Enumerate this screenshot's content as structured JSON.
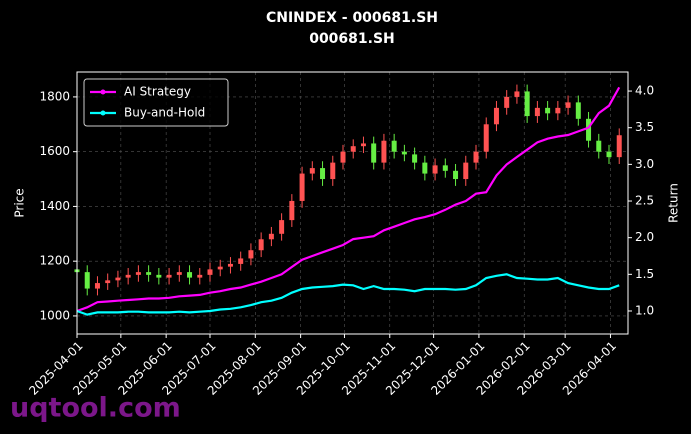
{
  "chart_data": {
    "type": "candlestick",
    "title": "CNINDEX - 000681.SH",
    "subtitle": "000681.SH",
    "y_label": "Price",
    "y2_label": "Return",
    "watermark": "uqtool.com",
    "x": [
      "2025-04-01",
      "2025-04-08",
      "2025-04-15",
      "2025-04-22",
      "2025-04-29",
      "2025-05-06",
      "2025-05-13",
      "2025-05-20",
      "2025-05-27",
      "2025-06-03",
      "2025-06-10",
      "2025-06-17",
      "2025-06-24",
      "2025-07-01",
      "2025-07-08",
      "2025-07-15",
      "2025-07-22",
      "2025-07-29",
      "2025-08-05",
      "2025-08-12",
      "2025-08-19",
      "2025-08-26",
      "2025-09-02",
      "2025-09-09",
      "2025-09-16",
      "2025-09-23",
      "2025-09-30",
      "2025-10-07",
      "2025-10-14",
      "2025-10-21",
      "2025-10-28",
      "2025-11-04",
      "2025-11-11",
      "2025-11-18",
      "2025-11-25",
      "2025-12-02",
      "2025-12-09",
      "2025-12-16",
      "2025-12-23",
      "2025-12-30",
      "2026-01-06",
      "2026-01-13",
      "2026-01-20",
      "2026-01-27",
      "2026-02-03",
      "2026-02-10",
      "2026-02-17",
      "2026-02-24",
      "2026-03-03",
      "2026-03-10",
      "2026-03-17",
      "2026-03-24",
      "2026-03-31",
      "2026-04-07"
    ],
    "candles": {
      "up_color": "#ff5252",
      "down_color": "#66ee44",
      "open": [
        1170,
        1160,
        1100,
        1120,
        1130,
        1140,
        1150,
        1160,
        1150,
        1140,
        1150,
        1160,
        1140,
        1150,
        1170,
        1180,
        1190,
        1210,
        1240,
        1280,
        1300,
        1350,
        1420,
        1520,
        1540,
        1500,
        1560,
        1600,
        1620,
        1630,
        1560,
        1640,
        1600,
        1590,
        1560,
        1520,
        1550,
        1530,
        1500,
        1560,
        1600,
        1700,
        1760,
        1800,
        1820,
        1730,
        1760,
        1740,
        1760,
        1780,
        1720,
        1640,
        1600,
        1580
      ],
      "high": [
        1195,
        1185,
        1145,
        1155,
        1165,
        1175,
        1185,
        1185,
        1175,
        1175,
        1185,
        1185,
        1175,
        1195,
        1205,
        1215,
        1235,
        1265,
        1305,
        1325,
        1375,
        1445,
        1545,
        1565,
        1565,
        1585,
        1625,
        1645,
        1655,
        1655,
        1665,
        1665,
        1625,
        1615,
        1585,
        1575,
        1575,
        1555,
        1585,
        1625,
        1725,
        1785,
        1825,
        1845,
        1845,
        1785,
        1785,
        1785,
        1805,
        1805,
        1745,
        1665,
        1625,
        1685
      ],
      "low": [
        1135,
        1075,
        1075,
        1095,
        1105,
        1115,
        1125,
        1125,
        1115,
        1115,
        1125,
        1115,
        1115,
        1125,
        1145,
        1155,
        1165,
        1185,
        1215,
        1255,
        1275,
        1325,
        1395,
        1495,
        1475,
        1475,
        1535,
        1575,
        1595,
        1535,
        1535,
        1575,
        1565,
        1535,
        1495,
        1495,
        1505,
        1475,
        1475,
        1535,
        1575,
        1675,
        1735,
        1775,
        1705,
        1705,
        1715,
        1715,
        1735,
        1695,
        1615,
        1575,
        1555,
        1555
      ],
      "close": [
        1160,
        1100,
        1120,
        1130,
        1140,
        1150,
        1160,
        1150,
        1140,
        1150,
        1160,
        1140,
        1150,
        1170,
        1180,
        1190,
        1210,
        1240,
        1280,
        1300,
        1350,
        1420,
        1520,
        1540,
        1500,
        1560,
        1600,
        1620,
        1630,
        1560,
        1640,
        1600,
        1590,
        1560,
        1520,
        1550,
        1530,
        1500,
        1560,
        1600,
        1700,
        1760,
        1800,
        1820,
        1730,
        1760,
        1740,
        1760,
        1780,
        1720,
        1640,
        1600,
        1580,
        1660
      ]
    },
    "series": [
      {
        "name": "AI Strategy",
        "color": "#ff00ff",
        "axis": "y2",
        "values": [
          1.0,
          1.05,
          1.12,
          1.13,
          1.14,
          1.15,
          1.16,
          1.17,
          1.17,
          1.18,
          1.2,
          1.21,
          1.22,
          1.25,
          1.27,
          1.3,
          1.32,
          1.36,
          1.4,
          1.45,
          1.5,
          1.6,
          1.7,
          1.75,
          1.8,
          1.85,
          1.9,
          1.98,
          2.0,
          2.02,
          2.1,
          2.15,
          2.2,
          2.25,
          2.28,
          2.32,
          2.38,
          2.45,
          2.5,
          2.6,
          2.62,
          2.85,
          3.0,
          3.1,
          3.2,
          3.3,
          3.35,
          3.38,
          3.4,
          3.45,
          3.5,
          3.7,
          3.8,
          4.05
        ]
      },
      {
        "name": "Buy-and-Hold",
        "color": "#00ffff",
        "axis": "y2",
        "values": [
          1.0,
          0.95,
          0.98,
          0.98,
          0.98,
          0.99,
          0.99,
          0.98,
          0.98,
          0.98,
          0.99,
          0.98,
          0.99,
          1.0,
          1.02,
          1.03,
          1.05,
          1.08,
          1.12,
          1.14,
          1.18,
          1.25,
          1.3,
          1.32,
          1.33,
          1.34,
          1.36,
          1.35,
          1.3,
          1.34,
          1.3,
          1.3,
          1.29,
          1.27,
          1.3,
          1.3,
          1.3,
          1.29,
          1.3,
          1.35,
          1.45,
          1.48,
          1.5,
          1.45,
          1.44,
          1.43,
          1.43,
          1.45,
          1.38,
          1.35,
          1.32,
          1.3,
          1.3,
          1.35
        ]
      }
    ],
    "xlim": [
      "2025-04-01",
      "2026-04-13"
    ],
    "xticks": [
      "2025-04-01",
      "2025-05-01",
      "2025-06-01",
      "2025-07-01",
      "2025-08-01",
      "2025-09-01",
      "2025-10-01",
      "2025-11-01",
      "2025-12-01",
      "2026-01-01",
      "2026-02-01",
      "2026-03-01",
      "2026-04-01"
    ],
    "ylim": [
      934,
      1891
    ],
    "yticks": [
      1000,
      1200,
      1400,
      1600,
      1800
    ],
    "y2lim": [
      0.686,
      4.26
    ],
    "y2ticks": [
      {
        "value": 1,
        "label": "1.0"
      },
      {
        "value": 1.5,
        "label": "1.5"
      },
      {
        "value": 2,
        "label": "2.0"
      },
      {
        "value": 2.5,
        "label": "2.5"
      },
      {
        "value": 3,
        "label": "3.0"
      },
      {
        "value": 3.5,
        "label": "3.5"
      },
      {
        "value": 4,
        "label": "4.0"
      }
    ],
    "grid": true,
    "legend": "upper left"
  }
}
